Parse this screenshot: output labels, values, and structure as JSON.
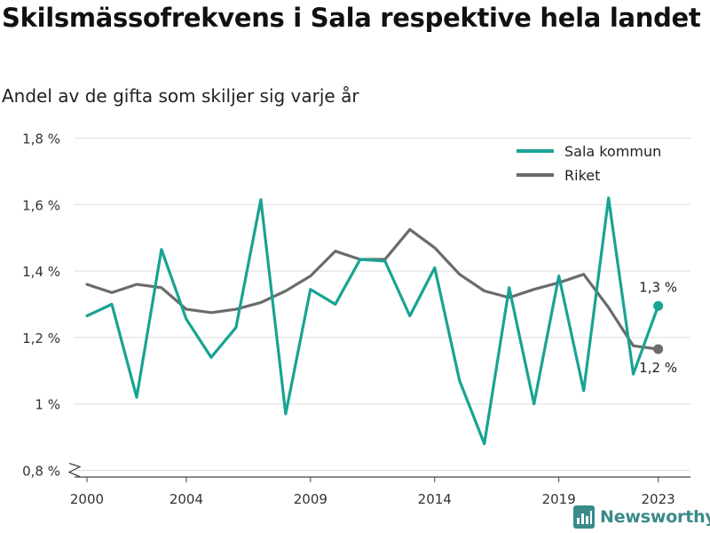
{
  "title": "Skilsmässofrekvens i Sala respektive hela landet",
  "subtitle": "Andel av de gifta som skiljer sig varje år",
  "brand": "Newsworthy",
  "colors": {
    "sala": "#18a394",
    "riket": "#6b6b6b",
    "grid": "#dedede",
    "axis": "#444444",
    "brand": "#3a8a8a"
  },
  "chart_data": {
    "type": "line",
    "x_ticks": [
      2000,
      2004,
      2009,
      2014,
      2019,
      2023
    ],
    "x_tick_labels": [
      "2000",
      "2004",
      "2009",
      "2014",
      "2019",
      "2023"
    ],
    "y_ticks": [
      0.8,
      1.0,
      1.2,
      1.4,
      1.6,
      1.8
    ],
    "y_tick_labels": [
      "0,8 %",
      "1 %",
      "1,2 %",
      "1,4 %",
      "1,6 %",
      "1,8 %"
    ],
    "xlim": [
      1999.5,
      2024.3
    ],
    "ylim": [
      0.78,
      1.82
    ],
    "grid": true,
    "legend_position": "top-right",
    "x": [
      2000,
      2001,
      2002,
      2003,
      2004,
      2005,
      2006,
      2007,
      2008,
      2009,
      2010,
      2011,
      2012,
      2013,
      2014,
      2015,
      2016,
      2017,
      2018,
      2019,
      2020,
      2021,
      2022,
      2023
    ],
    "series": [
      {
        "name": "Sala kommun",
        "color": "#18a394",
        "values": [
          1.265,
          1.3,
          1.02,
          1.465,
          1.255,
          1.14,
          1.23,
          1.615,
          0.97,
          1.345,
          1.3,
          1.435,
          1.43,
          1.265,
          1.41,
          1.07,
          0.88,
          1.35,
          1.0,
          1.385,
          1.04,
          1.62,
          1.09,
          1.295
        ],
        "end_label": "1,3 %"
      },
      {
        "name": "Riket",
        "color": "#6b6b6b",
        "values": [
          1.36,
          1.335,
          1.36,
          1.35,
          1.285,
          1.275,
          1.285,
          1.305,
          1.34,
          1.385,
          1.46,
          1.435,
          1.435,
          1.525,
          1.47,
          1.39,
          1.34,
          1.32,
          1.345,
          1.365,
          1.39,
          1.29,
          1.175,
          1.165
        ],
        "end_label": "1,2 %"
      }
    ]
  }
}
